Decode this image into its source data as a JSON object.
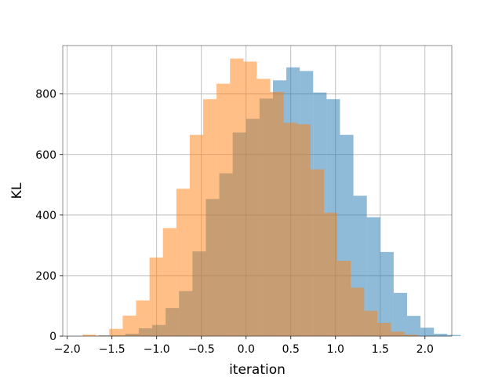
{
  "chart_data": {
    "type": "histogram",
    "title": "",
    "xlabel": "iteration",
    "ylabel": "KL",
    "xlim": [
      -2.05,
      2.3
    ],
    "ylim": [
      0,
      960
    ],
    "xticks": [
      -2.0,
      -1.5,
      -1.0,
      -0.5,
      0.0,
      0.5,
      1.0,
      1.5,
      2.0
    ],
    "xtick_labels": [
      "−2.0",
      "−1.5",
      "−1.0",
      "−0.5",
      "0.0",
      "0.5",
      "1.0",
      "1.5",
      "2.0"
    ],
    "yticks": [
      0,
      200,
      400,
      600,
      800
    ],
    "ytick_labels": [
      "0",
      "200",
      "400",
      "600",
      "800"
    ],
    "grid": true,
    "legend": false,
    "bin_width": 0.15,
    "series": [
      {
        "color": "#1f77b4",
        "opacity": 0.5,
        "bin_start": -1.65,
        "values": [
          3,
          3,
          8,
          26,
          37,
          93,
          149,
          280,
          453,
          538,
          673,
          718,
          785,
          845,
          888,
          876,
          805,
          783,
          665,
          464,
          393,
          278,
          143,
          67,
          28,
          8,
          4
        ]
      },
      {
        "color": "#ff7f0e",
        "opacity": 0.5,
        "bin_start": -1.83,
        "values": [
          5,
          2,
          24,
          68,
          118,
          260,
          357,
          487,
          665,
          783,
          834,
          917,
          907,
          850,
          807,
          705,
          700,
          551,
          408,
          249,
          160,
          84,
          44,
          15,
          5
        ]
      }
    ]
  }
}
